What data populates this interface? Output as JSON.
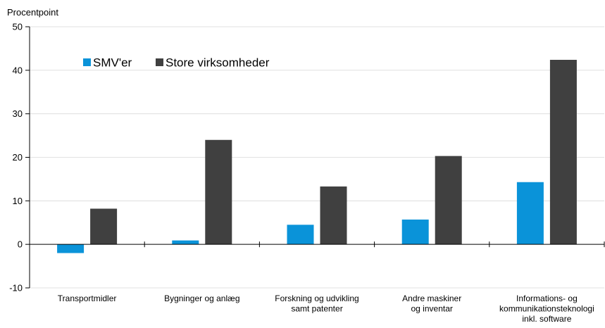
{
  "chart_data": {
    "type": "bar",
    "ylabel": "Procentpoint",
    "ylim": [
      -10,
      50
    ],
    "yticks": [
      "-10",
      "0",
      "10",
      "20",
      "30",
      "40",
      "50"
    ],
    "ytick_values": [
      -10,
      0,
      10,
      20,
      30,
      40,
      50
    ],
    "grid": true,
    "legend_position": "top-left",
    "categories": [
      [
        "Transportmidler"
      ],
      [
        "Bygninger og anlæg"
      ],
      [
        "Forskning og udvikling",
        "samt patenter"
      ],
      [
        "Andre maskiner",
        "og inventar"
      ],
      [
        "Informations- og",
        "kommunikationsteknologi",
        "inkl. software"
      ]
    ],
    "series": [
      {
        "name": "SMV'er",
        "color": "#0a93d9",
        "values": [
          -2.0,
          0.9,
          4.5,
          5.7,
          14.3
        ]
      },
      {
        "name": "Store virksomheder",
        "color": "#404040",
        "values": [
          8.2,
          24.0,
          13.3,
          20.3,
          42.4
        ]
      }
    ]
  }
}
